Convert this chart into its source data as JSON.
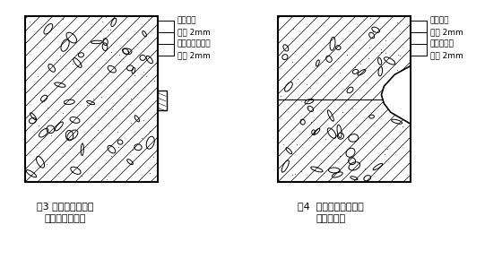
{
  "background_color": "#ffffff",
  "fig_width": 5.6,
  "fig_height": 2.99,
  "dpi": 100,
  "fig3": {
    "title_line1": "图3 水泥砂浆捣实法",
    "title_line2": "处理蜂窝、孔洞",
    "labels": [
      "水泥沙浆",
      "素灰 2mm",
      "干硬性水泥沙浆",
      "素灰 2mm"
    ]
  },
  "fig4": {
    "title_line1": "图4  混凝土描实法处理",
    "title_line2": "蜂窝、孔洞",
    "labels": [
      "水泥沙浆",
      "素灰 2mm",
      "细石混凝土",
      "素灰 2mm"
    ]
  }
}
